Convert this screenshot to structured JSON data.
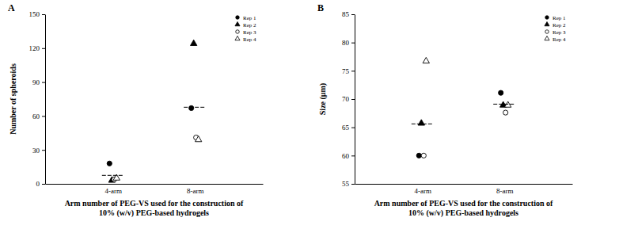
{
  "chart_data": [
    {
      "type": "scatter",
      "title": "A",
      "x_label": [
        "Arm number of PEG-VS used for the construction of",
        "10% (w/v) PEG-based hydrogels"
      ],
      "y_label": "Number of spheroids",
      "categories": [
        "4-arm",
        "8-arm"
      ],
      "series": [
        {
          "name": "Rep 1",
          "color": "#000000",
          "marker": "filled-circle",
          "values": [
            18,
            67
          ]
        },
        {
          "name": "Rep 2",
          "color": "#000000",
          "marker": "filled-triangle",
          "values": [
            3,
            124
          ]
        },
        {
          "name": "Rep 3",
          "color": "#000000",
          "marker": "open-circle",
          "values": [
            4,
            41
          ]
        },
        {
          "name": "Rep 4",
          "color": "#000000",
          "marker": "open-triangle",
          "values": [
            5,
            39
          ]
        }
      ],
      "mean": [
        7.5,
        67.75
      ],
      "ylim": [
        0,
        150
      ],
      "yticks": [
        0,
        30,
        60,
        90,
        120,
        150
      ],
      "legend": "top-right",
      "grid": false
    },
    {
      "type": "scatter",
      "title": "B",
      "x_label": [
        "Arm number of PEG-VS used for the construction of",
        "10% (w/v) PEG-based hydrogels"
      ],
      "y_label": "Size (μm)",
      "categories": [
        "4-arm",
        "8-arm"
      ],
      "series": [
        {
          "name": "Rep 1",
          "color": "#000000",
          "marker": "filled-circle",
          "values": [
            60,
            71.1
          ]
        },
        {
          "name": "Rep 2",
          "color": "#000000",
          "marker": "filled-triangle",
          "values": [
            65.7,
            68.9
          ]
        },
        {
          "name": "Rep 3",
          "color": "#000000",
          "marker": "open-circle",
          "values": [
            60,
            67.6
          ]
        },
        {
          "name": "Rep 4",
          "color": "#000000",
          "marker": "open-triangle",
          "values": [
            76.7,
            68.9
          ]
        }
      ],
      "mean": [
        65.6,
        69.1
      ],
      "ylim": [
        55,
        85
      ],
      "yticks": [
        55,
        60,
        65,
        70,
        75,
        80,
        85
      ],
      "legend": "top-right",
      "grid": false
    }
  ]
}
